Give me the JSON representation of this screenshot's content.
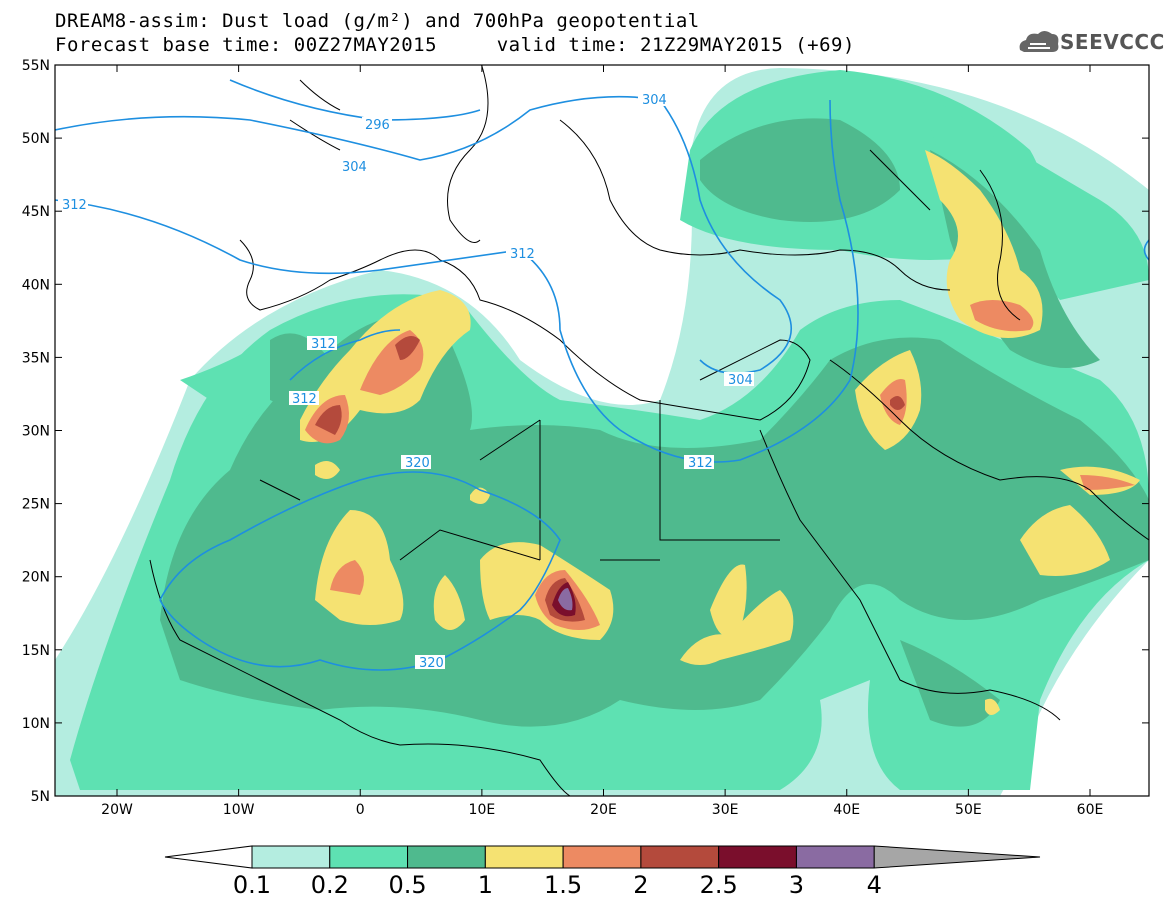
{
  "title": {
    "line1": "DREAM8-assim: Dust load (g/m²) and 700hPa geopotential",
    "line2": "Forecast base time: 00Z27MAY2015     valid time: 21Z29MAY2015 (+69)"
  },
  "logo": {
    "text": "SEEVCCC",
    "icon": "cloud-icon"
  },
  "axes": {
    "lat_labels": [
      "55N",
      "50N",
      "45N",
      "40N",
      "35N",
      "30N",
      "25N",
      "20N",
      "15N",
      "10N",
      "5N"
    ],
    "lon_labels": [
      "20W",
      "10W",
      "0",
      "10E",
      "20E",
      "30E",
      "40E",
      "50E",
      "60E"
    ]
  },
  "contour_labels": [
    "296",
    "304",
    "304",
    "312",
    "312",
    "312",
    "312",
    "312",
    "320",
    "320",
    "304"
  ],
  "colorbar": {
    "labels": [
      "0.1",
      "0.2",
      "0.5",
      "1",
      "1.5",
      "2",
      "2.5",
      "3",
      "4"
    ],
    "colors": [
      "#ffffff",
      "#b4ede0",
      "#5ee1b2",
      "#4fba8e",
      "#f5e272",
      "#ed8a62",
      "#b44a3c",
      "#7a0e2c",
      "#8a6ba2",
      "#a6a6a6"
    ]
  },
  "colors": {
    "land_base": "#ffffff",
    "contour": "#1e8fe0",
    "coast": "#000000"
  }
}
